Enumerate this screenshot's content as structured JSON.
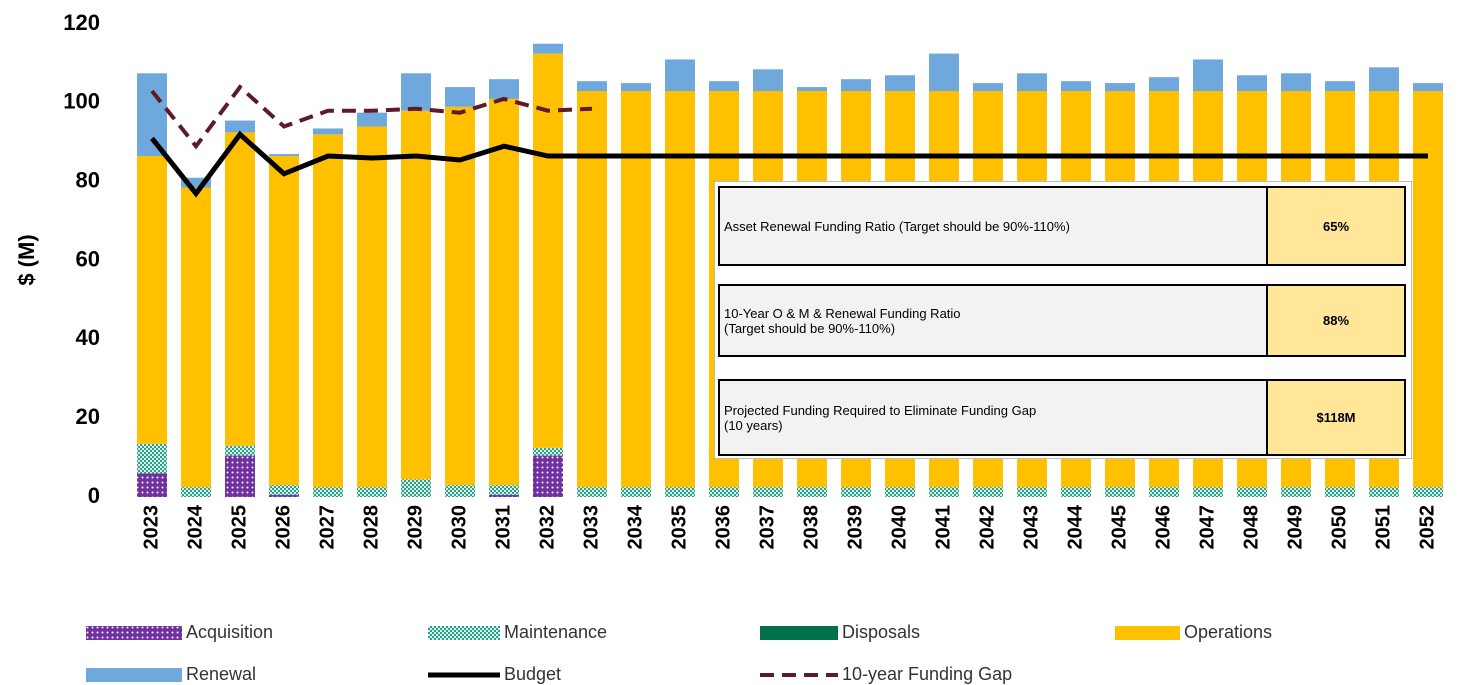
{
  "chart_data": {
    "type": "stacked_bar_line",
    "y_label": "$ (M)",
    "categories": [
      "2023",
      "2024",
      "2025",
      "2026",
      "2027",
      "2028",
      "2029",
      "2030",
      "2031",
      "2032",
      "2033",
      "2034",
      "2035",
      "2036",
      "2037",
      "2038",
      "2039",
      "2040",
      "2041",
      "2042",
      "2043",
      "2044",
      "2045",
      "2046",
      "2047",
      "2048",
      "2049",
      "2050",
      "2051",
      "2052"
    ],
    "series": [
      {
        "name": "Acquisition",
        "color": "#7030a0",
        "pattern": "dots",
        "values": [
          6,
          0,
          10.5,
          0.5,
          0,
          0,
          0,
          0,
          0.5,
          10.5,
          0,
          0,
          0,
          0,
          0,
          0,
          0,
          0,
          0,
          0,
          0,
          0,
          0,
          0,
          0,
          0,
          0,
          0,
          0,
          0
        ]
      },
      {
        "name": "Maintenance",
        "color": "#2e9e8a",
        "pattern": "checks",
        "values": [
          7.5,
          2.5,
          2.5,
          2.5,
          2.5,
          2.5,
          4.5,
          3,
          2.5,
          2,
          2.5,
          2.5,
          2.5,
          2.5,
          2.5,
          2.5,
          2.5,
          2.5,
          2.5,
          2.5,
          2.5,
          2.5,
          2.5,
          2.5,
          2.5,
          2.5,
          2.5,
          2.5,
          2.5,
          2.5
        ]
      },
      {
        "name": "Disposals",
        "color": "#00704a",
        "values": [
          0,
          0,
          0,
          0,
          0,
          0,
          0,
          0,
          0,
          0,
          0,
          0,
          0,
          0,
          0,
          0,
          0,
          0,
          0,
          0,
          0,
          0,
          0,
          0,
          0,
          0,
          0,
          0,
          0,
          0
        ]
      },
      {
        "name": "Operations",
        "color": "#ffc000",
        "values": [
          73,
          76,
          79.5,
          83.5,
          89.5,
          91.5,
          93.5,
          96,
          98,
          100,
          100.5,
          100.5,
          100.5,
          100.5,
          100.5,
          100.5,
          100.5,
          100.5,
          100.5,
          100.5,
          100.5,
          100.5,
          100.5,
          100.5,
          100.5,
          100.5,
          100.5,
          100.5,
          100.5,
          100.5
        ]
      },
      {
        "name": "Renewal",
        "color": "#6fa8dc",
        "values": [
          21,
          2.5,
          3,
          0.5,
          1.5,
          3.5,
          9.5,
          5,
          5,
          2.5,
          2.5,
          2,
          8,
          2.5,
          5.5,
          1,
          3,
          4,
          9.5,
          2,
          4.5,
          2.5,
          2,
          3.5,
          8,
          4,
          4.5,
          2.5,
          6,
          2
        ]
      }
    ],
    "lines": [
      {
        "name": "Budget",
        "color": "#000000",
        "dashed": false,
        "values": [
          91,
          77,
          92,
          82,
          86.5,
          86,
          86.5,
          85.5,
          89,
          86.5,
          86.5,
          86.5,
          86.5,
          86.5,
          86.5,
          86.5,
          86.5,
          86.5,
          86.5,
          86.5,
          86.5,
          86.5,
          86.5,
          86.5,
          86.5,
          86.5,
          86.5,
          86.5,
          86.5,
          86.5
        ]
      },
      {
        "name": "10-year Funding Gap",
        "color": "#5c1a2a",
        "dashed": true,
        "values": [
          103,
          89,
          104,
          94,
          98,
          98,
          98.5,
          97.5,
          101,
          98,
          98.5,
          null,
          null,
          null,
          null,
          null,
          null,
          null,
          null,
          null,
          null,
          null,
          null,
          null,
          null,
          null,
          null,
          null,
          null,
          null
        ]
      }
    ],
    "ylim": [
      0,
      120
    ],
    "yticks": [
      0,
      20,
      40,
      60,
      80,
      100,
      120
    ],
    "grid": false
  },
  "table": {
    "rows": [
      [
        "Asset Renewal Funding Ratio  (Target should be 90%-110%)",
        "65%"
      ],
      [
        "10-Year O & M & Renewal Funding Ratio\n(Target should be 90%-110%)",
        "88%"
      ],
      [
        "Projected Funding Required to Eliminate Funding Gap\n(10 years)",
        "$118M"
      ]
    ]
  }
}
